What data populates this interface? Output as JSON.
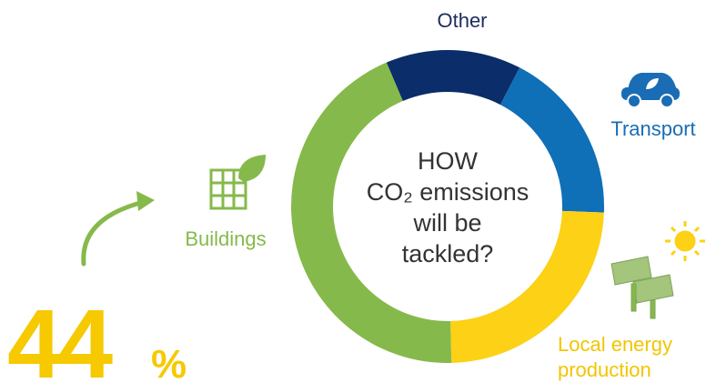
{
  "chart_data": {
    "type": "donut",
    "categories": [
      "Other",
      "Transport",
      "Local energy production",
      "Buildings"
    ],
    "values": [
      14,
      18,
      24,
      44
    ],
    "value_labels": [
      null,
      null,
      null,
      "44"
    ],
    "value_unit": "%",
    "colors": [
      "#0b2d69",
      "#0f6fb7",
      "#fcd116",
      "#86b94b"
    ],
    "center_text": [
      "HOW",
      "CO₂ emissions",
      "will be",
      "tackled?"
    ]
  }
}
